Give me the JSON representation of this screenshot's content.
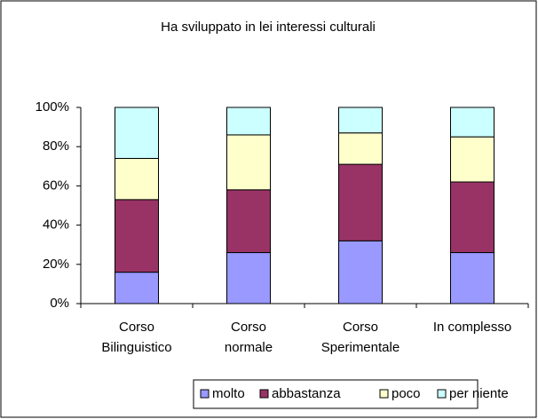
{
  "chart_data": {
    "type": "stacked_bar",
    "title": "Ha sviluppato in lei interessi culturali",
    "categories": [
      "Corso\nBilinguistico",
      "Corso\nnormale",
      "Corso\nSperimentale",
      "In complesso"
    ],
    "series": [
      {
        "name": "molto",
        "color": "#9999ff",
        "values": [
          16,
          26,
          32,
          26
        ]
      },
      {
        "name": "abbastanza",
        "color": "#993366",
        "values": [
          37,
          32,
          39,
          36
        ]
      },
      {
        "name": "poco",
        "color": "#ffffcc",
        "values": [
          21,
          28,
          16,
          23
        ]
      },
      {
        "name": "per niente",
        "color": "#ccffff",
        "values": [
          26,
          14,
          13,
          15
        ]
      }
    ],
    "ylim": [
      0,
      100
    ],
    "yticks": [
      {
        "value": 0,
        "label": "0%"
      },
      {
        "value": 20,
        "label": "20%"
      },
      {
        "value": 40,
        "label": "40%"
      },
      {
        "value": 60,
        "label": "60%"
      },
      {
        "value": 80,
        "label": "80%"
      },
      {
        "value": 100,
        "label": "100%"
      }
    ],
    "legend": "bottom"
  }
}
